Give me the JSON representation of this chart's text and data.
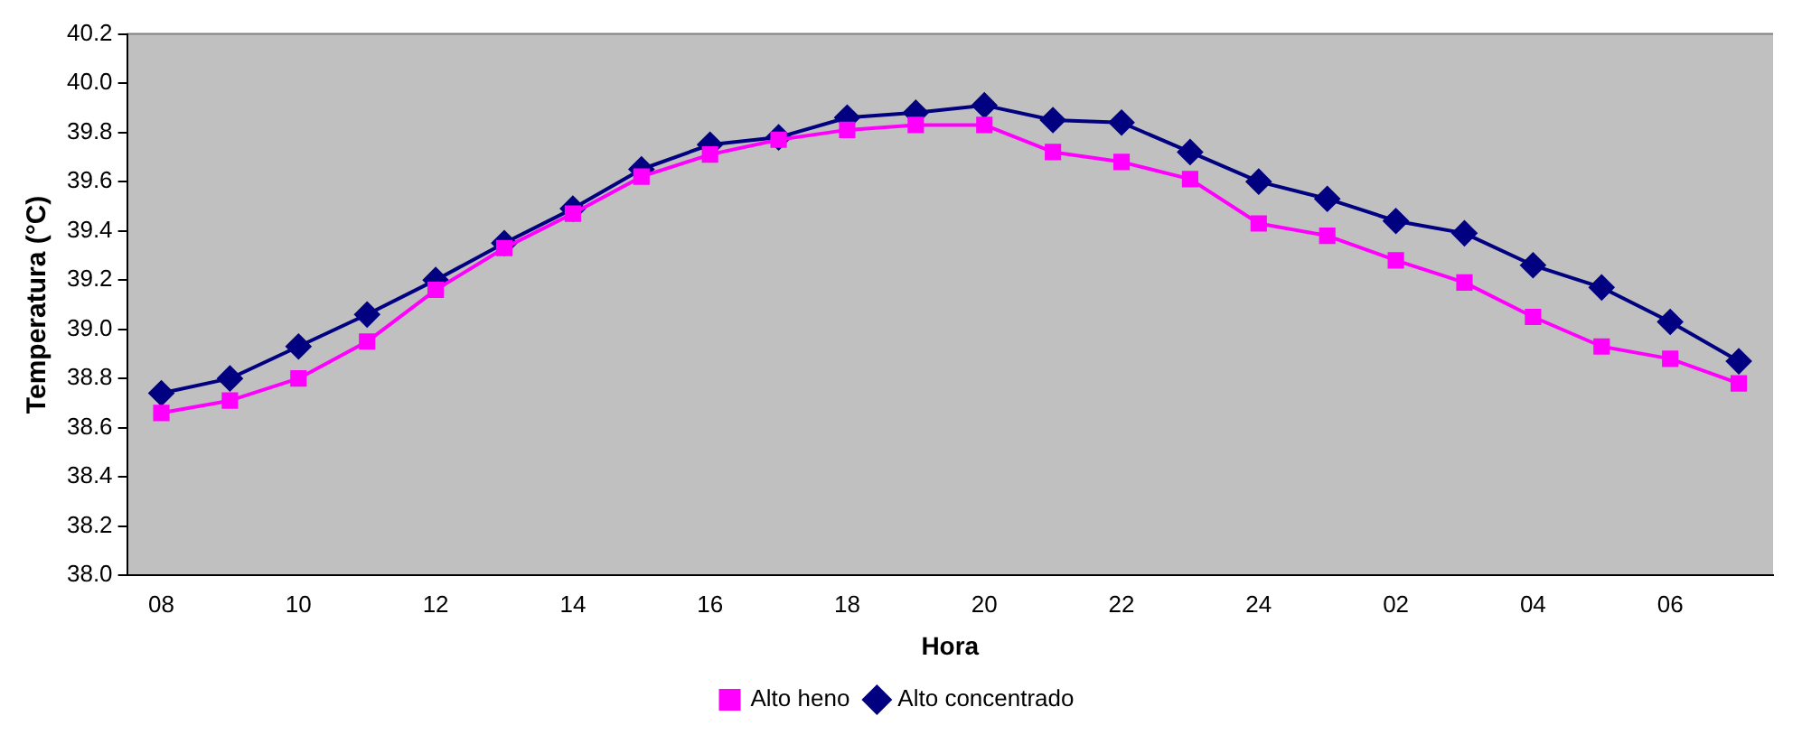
{
  "chart_data": {
    "type": "line",
    "xlabel": "Hora",
    "ylabel": "Temperatura (°C)",
    "categories": [
      "08",
      null,
      "10",
      null,
      "12",
      null,
      "14",
      null,
      "16",
      null,
      "18",
      null,
      "20",
      null,
      "22",
      null,
      "24",
      null,
      "02",
      null,
      "04",
      null,
      "06",
      null
    ],
    "series": [
      {
        "name": "Alto concentrado",
        "color": "#000080",
        "marker": "diamond",
        "values": [
          38.74,
          38.8,
          38.93,
          39.06,
          39.2,
          39.35,
          39.49,
          39.65,
          39.75,
          39.78,
          39.86,
          39.88,
          39.91,
          39.85,
          39.84,
          39.72,
          39.6,
          39.53,
          39.44,
          39.39,
          39.26,
          39.17,
          39.03,
          38.87
        ]
      },
      {
        "name": "Alto heno",
        "color": "#ff00ff",
        "marker": "square",
        "values": [
          38.66,
          38.71,
          38.8,
          38.95,
          39.16,
          39.33,
          39.47,
          39.62,
          39.71,
          39.77,
          39.81,
          39.83,
          39.83,
          39.72,
          39.68,
          39.61,
          39.43,
          39.38,
          39.28,
          39.19,
          39.05,
          38.93,
          38.88,
          38.78
        ]
      }
    ],
    "ylim": [
      38.0,
      40.2
    ],
    "yticks": [
      {
        "value": 38.0,
        "label": "38.0"
      },
      {
        "value": 38.2,
        "label": "38.2"
      },
      {
        "value": 38.4,
        "label": "38.4"
      },
      {
        "value": 38.6,
        "label": "38.6"
      },
      {
        "value": 38.8,
        "label": "38.8"
      },
      {
        "value": 39.0,
        "label": "39.0"
      },
      {
        "value": 39.2,
        "label": "39.2"
      },
      {
        "value": 39.4,
        "label": "39.4"
      },
      {
        "value": 39.6,
        "label": "39.6"
      },
      {
        "value": 39.8,
        "label": "39.8"
      },
      {
        "value": 40.0,
        "label": "40.0"
      },
      {
        "value": 40.2,
        "label": "40.2"
      }
    ],
    "grid": false,
    "legend": "bottom",
    "line_style": "solid"
  }
}
